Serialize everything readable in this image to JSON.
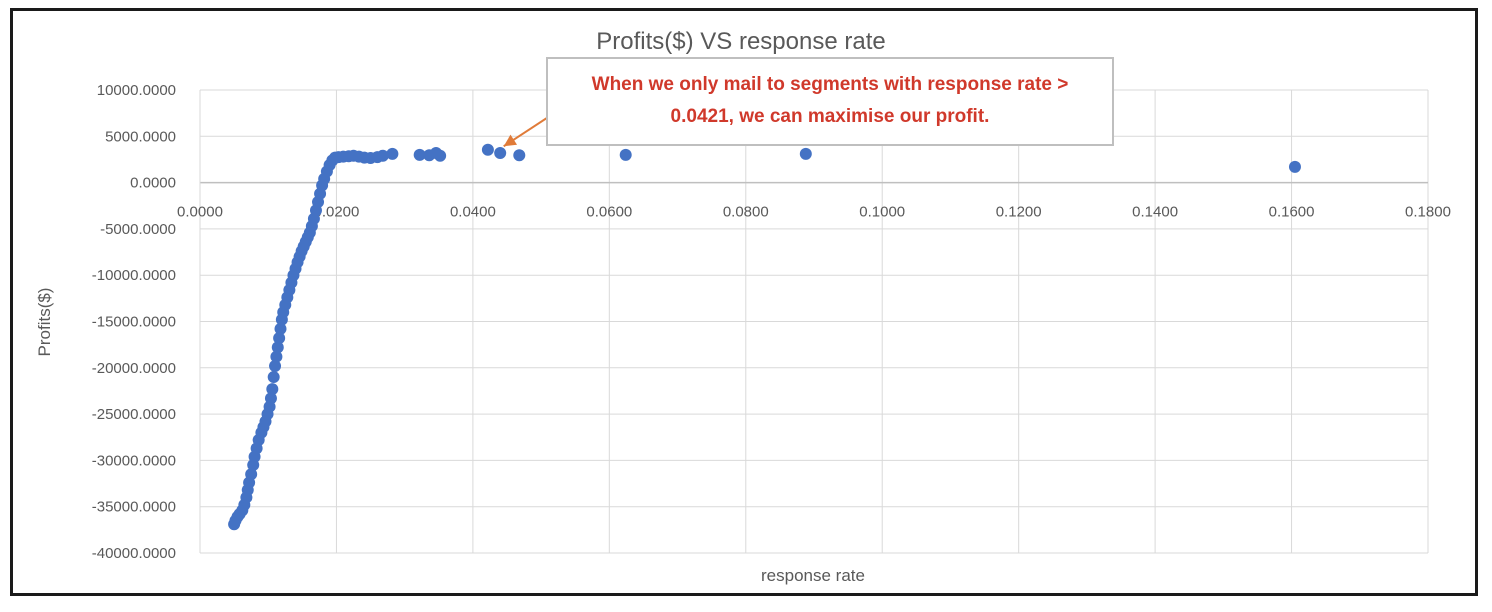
{
  "chart_data": {
    "type": "scatter",
    "title": "Profits($) VS response rate",
    "xlabel": "response rate",
    "ylabel": "Profits($)",
    "xlim": [
      0,
      0.18
    ],
    "ylim": [
      -40000,
      10000
    ],
    "x_ticks": [
      "0.0000",
      "0.0200",
      "0.0400",
      "0.0600",
      "0.0800",
      "0.1000",
      "0.1200",
      "0.1400",
      "0.1600",
      "0.1800"
    ],
    "y_ticks": [
      "10000.0000",
      "5000.0000",
      "0.0000",
      "-5000.0000",
      "-10000.0000",
      "-15000.0000",
      "-20000.0000",
      "-25000.0000",
      "-30000.0000",
      "-35000.0000",
      "-40000.0000"
    ],
    "grid": true,
    "marker_color": "#4472c4",
    "annotation": {
      "text": "When we only mail to segments with response rate > 0.0421, we can maximise our profit.",
      "color": "#d0392b",
      "arrow_color": "#e07b39",
      "target": [
        0.0432,
        3600
      ]
    },
    "series": [
      {
        "points": [
          [
            0.005,
            -36900
          ],
          [
            0.0052,
            -36500
          ],
          [
            0.0055,
            -36100
          ],
          [
            0.0058,
            -35800
          ],
          [
            0.0062,
            -35400
          ],
          [
            0.0065,
            -34800
          ],
          [
            0.0068,
            -34000
          ],
          [
            0.007,
            -33200
          ],
          [
            0.0072,
            -32400
          ],
          [
            0.0075,
            -31500
          ],
          [
            0.0078,
            -30500
          ],
          [
            0.008,
            -29600
          ],
          [
            0.0083,
            -28700
          ],
          [
            0.0086,
            -27800
          ],
          [
            0.009,
            -27000
          ],
          [
            0.0093,
            -26400
          ],
          [
            0.0096,
            -25800
          ],
          [
            0.0099,
            -25000
          ],
          [
            0.0102,
            -24200
          ],
          [
            0.0104,
            -23300
          ],
          [
            0.0106,
            -22300
          ],
          [
            0.0108,
            -21000
          ],
          [
            0.011,
            -19800
          ],
          [
            0.0112,
            -18800
          ],
          [
            0.0114,
            -17800
          ],
          [
            0.0116,
            -16800
          ],
          [
            0.0118,
            -15800
          ],
          [
            0.012,
            -14800
          ],
          [
            0.0122,
            -14000
          ],
          [
            0.0125,
            -13200
          ],
          [
            0.0128,
            -12400
          ],
          [
            0.0131,
            -11600
          ],
          [
            0.0134,
            -10800
          ],
          [
            0.0137,
            -10000
          ],
          [
            0.014,
            -9300
          ],
          [
            0.0143,
            -8600
          ],
          [
            0.0146,
            -8000
          ],
          [
            0.0149,
            -7400
          ],
          [
            0.0152,
            -6900
          ],
          [
            0.0155,
            -6400
          ],
          [
            0.0158,
            -5900
          ],
          [
            0.0161,
            -5400
          ],
          [
            0.0164,
            -4700
          ],
          [
            0.0167,
            -3900
          ],
          [
            0.017,
            -3000
          ],
          [
            0.0173,
            -2100
          ],
          [
            0.0176,
            -1200
          ],
          [
            0.0179,
            -300
          ],
          [
            0.0182,
            400
          ],
          [
            0.0186,
            1200
          ],
          [
            0.019,
            1900
          ],
          [
            0.0194,
            2400
          ],
          [
            0.0198,
            2700
          ],
          [
            0.0203,
            2750
          ],
          [
            0.021,
            2800
          ],
          [
            0.0218,
            2850
          ],
          [
            0.0225,
            2900
          ],
          [
            0.0233,
            2800
          ],
          [
            0.0241,
            2700
          ],
          [
            0.025,
            2650
          ],
          [
            0.026,
            2750
          ],
          [
            0.0268,
            2900
          ],
          [
            0.0282,
            3100
          ],
          [
            0.0322,
            3000
          ],
          [
            0.0336,
            2950
          ],
          [
            0.0346,
            3200
          ],
          [
            0.0352,
            2900
          ],
          [
            0.0422,
            3550
          ],
          [
            0.044,
            3200
          ],
          [
            0.0468,
            2950
          ],
          [
            0.0624,
            3000
          ],
          [
            0.0888,
            3100
          ],
          [
            0.1605,
            1700
          ]
        ]
      }
    ]
  }
}
